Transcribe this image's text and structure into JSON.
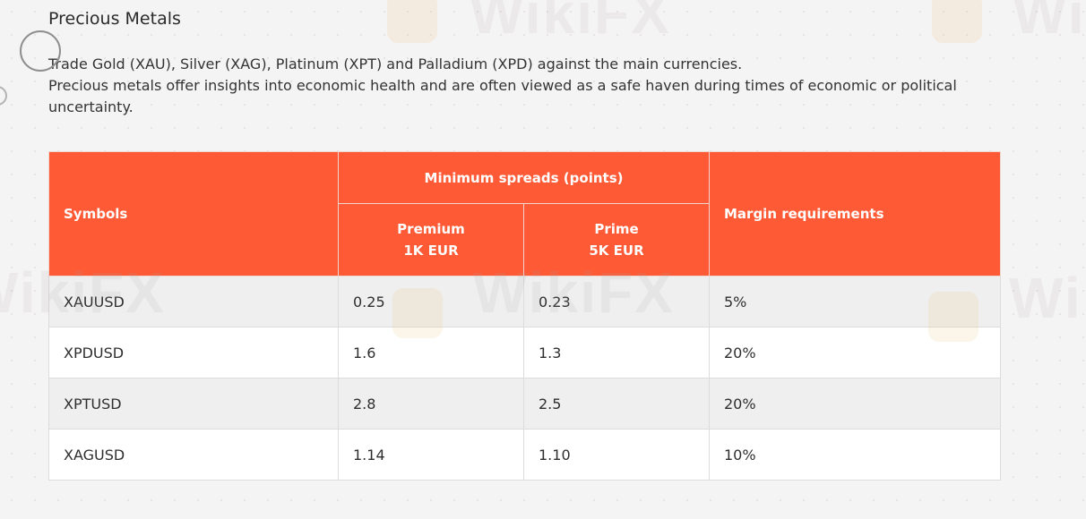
{
  "section": {
    "title": "Precious Metals",
    "description_lines": [
      "Trade Gold (XAU), Silver (XAG), Platinum (XPT) and Palladium (XPD) against the main currencies.",
      "Precious metals offer insights into economic health and are often viewed as a safe haven during times of economic or political uncertainty."
    ]
  },
  "table": {
    "headers": {
      "symbols": "Symbols",
      "spreads_group": "Minimum spreads (points)",
      "premium_line1": "Premium",
      "premium_line2": "1K EUR",
      "prime_line1": "Prime",
      "prime_line2": "5K EUR",
      "margin": "Margin requirements"
    },
    "rows": [
      {
        "symbol": "XAUUSD",
        "premium": "0.25",
        "prime": "0.23",
        "margin": "5%"
      },
      {
        "symbol": "XPDUSD",
        "premium": "1.6",
        "prime": "1.3",
        "margin": "20%"
      },
      {
        "symbol": "XPTUSD",
        "premium": "2.8",
        "prime": "2.5",
        "margin": "20%"
      },
      {
        "symbol": "XAGUSD",
        "premium": "1.14",
        "prime": "1.10",
        "margin": "10%"
      }
    ]
  },
  "watermark": {
    "text": "WikiFX"
  },
  "colors": {
    "header_background": "#fd5a35",
    "header_text": "#ffffff",
    "row_shade": "#efefef",
    "page_background": "#f5f4f4"
  }
}
